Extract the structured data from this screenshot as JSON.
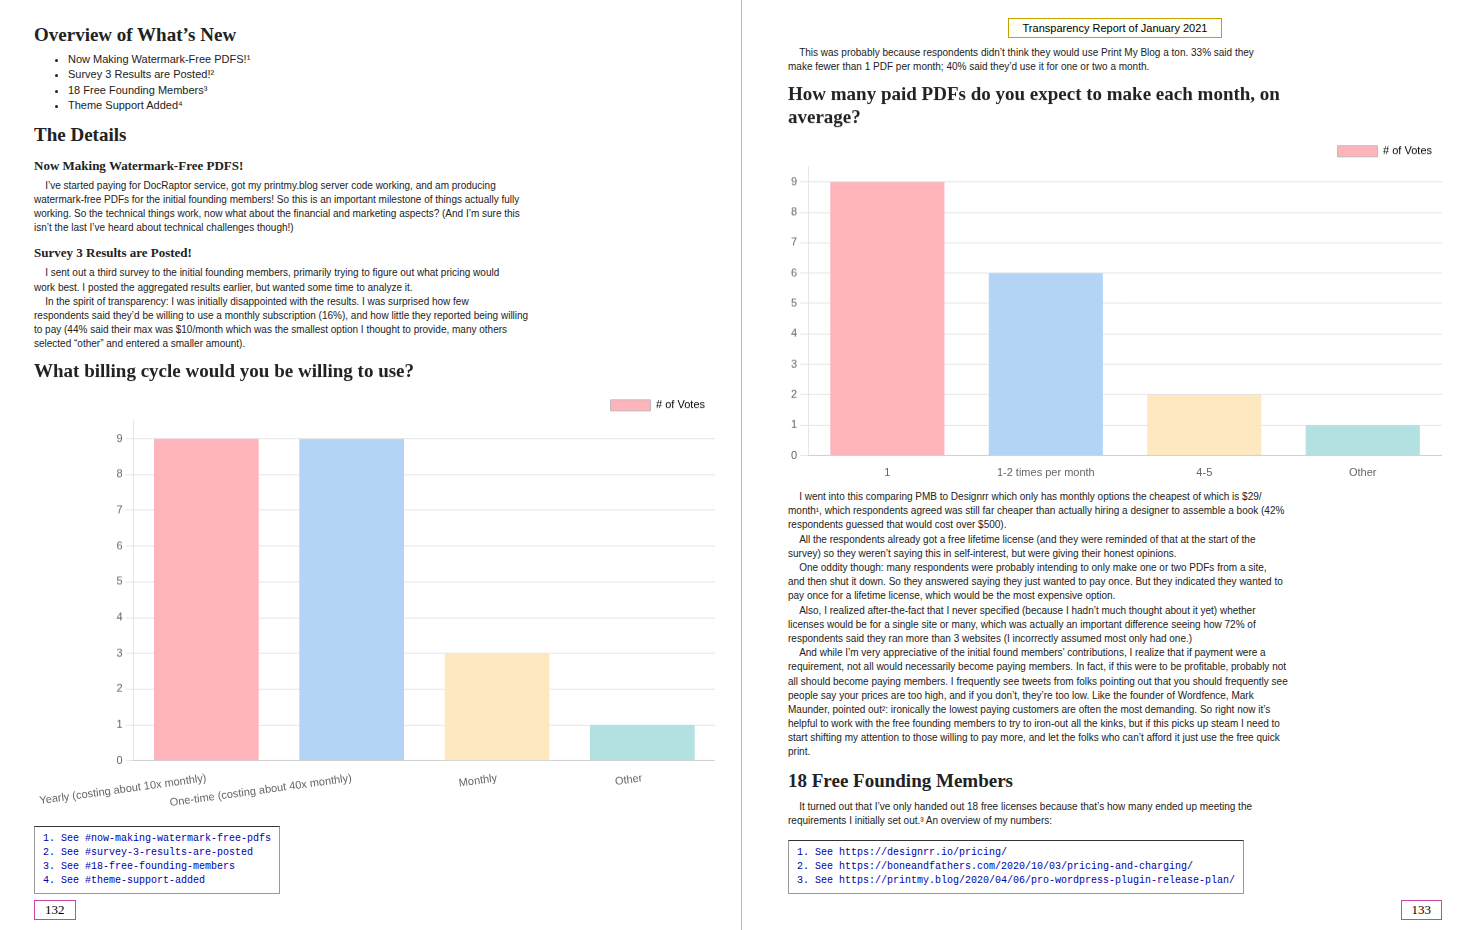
{
  "chart_data": [
    {
      "type": "bar",
      "title": "What billing cycle would you be willing to use?",
      "categories": [
        "Yearly (costing about 10x monthly)",
        "One-time (costing about 40x monthly)",
        "Monthly",
        "Other"
      ],
      "series": [
        {
          "name": "# of Votes",
          "color": "#ffb3ba",
          "colors": [
            "#ffb3ba",
            "#b3d4f5",
            "#fde8c0",
            "#b3e0e0"
          ],
          "values": [
            9,
            9,
            3,
            1
          ]
        }
      ],
      "ylim": [
        0,
        9.5
      ],
      "yticks": [
        0,
        1,
        2,
        3,
        4,
        5,
        6,
        7,
        8,
        9
      ],
      "grid": true,
      "legend": "upper right",
      "annotations": [
        "Overview of What’s New",
        "Now Making Watermark-Free PDFS!¹",
        "Survey 3 Results are Posted!²",
        "18 Free Founding Members³",
        "Theme Support Added⁴",
        "The Details",
        "Now Making Watermark-Free PDFS!",
        "    I’ve started paying for DocRaptor service, got my printmy.blog server code working, and am producing\nwatermark-free PDFs for the initial founding members! So this is an important milestone of things actually fully\nworking. So the technical things work, now what about the financial and marketing aspects? (And I’m sure this\nisn’t the last I’ve heard about technical challenges though!)",
        "Survey 3 Results are Posted!",
        "    I sent out a third survey to the initial founding members, primarily trying to figure out what pricing would\nwork best. I posted the aggregated results earlier, but wanted some time to analyze it.\n    In the spirit of transparency: I was initially disappointed with the results. I was surprised how few\nrespondents said they’d be willing to use a monthly subscription (16%), and how little they reported being willing\nto pay (44% said their max was $10/month which was the smallest option I thought to provide, many others\nselected “other” and entered a smaller amount).",
        "1. See #now-making-watermark-free-pdfs",
        "2. See #survey-3-results-are-posted",
        "3. See #18-free-founding-members",
        "4. See #theme-support-added",
        "132"
      ]
    },
    {
      "type": "bar",
      "title": "How many paid PDFs do you expect to make each month, on\naverage?",
      "categories": [
        "1",
        "1-2 times per month",
        "4-5",
        "Other"
      ],
      "series": [
        {
          "name": "# of Votes",
          "color": "#ffb3ba",
          "colors": [
            "#ffb3ba",
            "#b3d4f5",
            "#fde8c0",
            "#b3e0e0"
          ],
          "values": [
            9,
            6,
            2,
            1
          ]
        }
      ],
      "ylim": [
        0,
        9.5
      ],
      "yticks": [
        0,
        1,
        2,
        3,
        4,
        5,
        6,
        7,
        8,
        9
      ],
      "grid": true,
      "legend": "upper right",
      "annotations": [
        "Transparency Report of January 2021",
        "    This was probably because respondents didn’t think they would use Print My Blog a ton. 33% said they\nmake fewer than 1 PDF per month; 40% said they’d use it for one or two a month.",
        "    I went into this comparing PMB to Designrr which only has monthly options the cheapest of which is $29/\nmonth¹, which respondents agreed was still far cheaper than actually hiring a designer to assemble a book (42%\nrespondents guessed that would cost over $500).\n    All the respondents already got a free lifetime license (and they were reminded of that at the start of the\nsurvey) so they weren’t saying this in self-interest, but were giving their honest opinions.\n    One oddity though: many respondents were probably intending to only make one or two PDFs from a site,\nand then shut it down. So they answered saying they just wanted to pay once. But they indicated they wanted to\npay once for a lifetime license, which would be the most expensive option.\n    Also, I realized after-the-fact that I never specified (because I hadn’t much thought about it yet) whether\nlicenses would be for a single site or many, which was actually an important difference seeing how 72% of\nrespondents said they ran more than 3 websites (I incorrectly assumed most only had one.)\n    And while I’m very appreciative of the initial found members’ contributions, I realize that if payment were a\nrequirement, not all would necessarily become paying members. In fact, if this were to be profitable, probably not\nall should become paying members. I frequently see tweets from folks pointing out that you should frequently see\npeople say your prices are too high, and if you don’t, they’re too low. Like the founder of Wordfence, Mark\nMaunder, pointed out²: ironically the lowest paying customers are often the most demanding. So right now it’s\nhelpful to work with the free founding members to try to iron-out all the kinks, but if this picks up steam I need to\nstart shifting my attention to those willing to pay more, and let the folks who can’t afford it just use the free quick\nprint.",
        "18 Free Founding Members",
        "    It turned out that I’ve only handed out 18 free licenses because that’s how many ended up meeting the\nrequirements I initially set out.³ An overview of my numbers:",
        "1. See https://designrr.io/pricing/",
        "2. See https://boneandfathers.com/2020/10/03/pricing-and-charging/",
        "3. See https://printmy.blog/2020/04/06/pro-wordpress-plugin-release-plan/",
        "133"
      ]
    }
  ]
}
